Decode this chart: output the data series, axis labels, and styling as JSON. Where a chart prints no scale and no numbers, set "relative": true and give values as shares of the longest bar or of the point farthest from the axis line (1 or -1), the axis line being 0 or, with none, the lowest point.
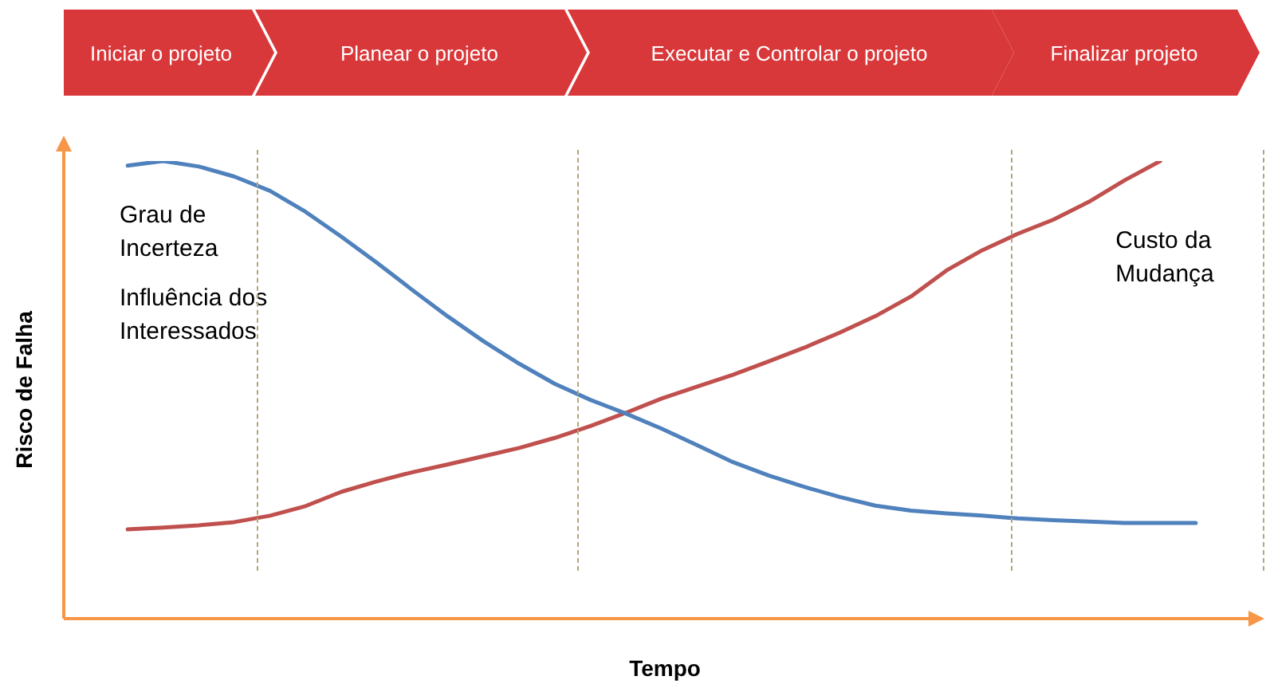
{
  "chart_data": {
    "type": "line",
    "relative": true,
    "xlabel": "Tempo",
    "ylabel": "Risco de Falha",
    "legend": false,
    "marker": "none",
    "line_style": "solid",
    "categories": [
      null,
      null,
      null,
      null,
      null,
      null,
      null,
      null,
      null,
      null,
      null,
      null,
      null,
      null,
      null,
      null,
      null,
      null,
      null,
      null,
      null,
      null,
      null,
      null,
      null,
      null,
      null,
      null,
      null,
      null,
      null
    ],
    "series": [
      {
        "name": "Grau de Incerteza",
        "color": "#4f81bd",
        "values": [
          0.99,
          1.0,
          0.988,
          0.966,
          0.935,
          0.889,
          0.835,
          0.778,
          0.718,
          0.66,
          0.606,
          0.557,
          0.513,
          0.478,
          0.448,
          0.415,
          0.379,
          0.342,
          0.313,
          0.288,
          0.266,
          0.247,
          0.236,
          0.23,
          0.225,
          0.219,
          0.215,
          0.212,
          0.209,
          0.209,
          0.209
        ]
      },
      {
        "name": "Custo da Mudança",
        "color": "#c0504d",
        "values": [
          0.195,
          0.199,
          0.204,
          0.211,
          0.225,
          0.246,
          0.277,
          0.3,
          0.32,
          0.337,
          0.355,
          0.373,
          0.395,
          0.421,
          0.45,
          0.481,
          0.507,
          0.533,
          0.562,
          0.592,
          0.625,
          0.661,
          0.704,
          0.761,
          0.805,
          0.841,
          0.872,
          0.911,
          0.958,
          1.0,
          null
        ]
      }
    ],
    "annotations": [
      "Iniciar o projeto",
      "Planear o projeto",
      "Executar e Controlar o projeto",
      "Finalizar projeto",
      "Influência dos Interessados"
    ]
  }
}
